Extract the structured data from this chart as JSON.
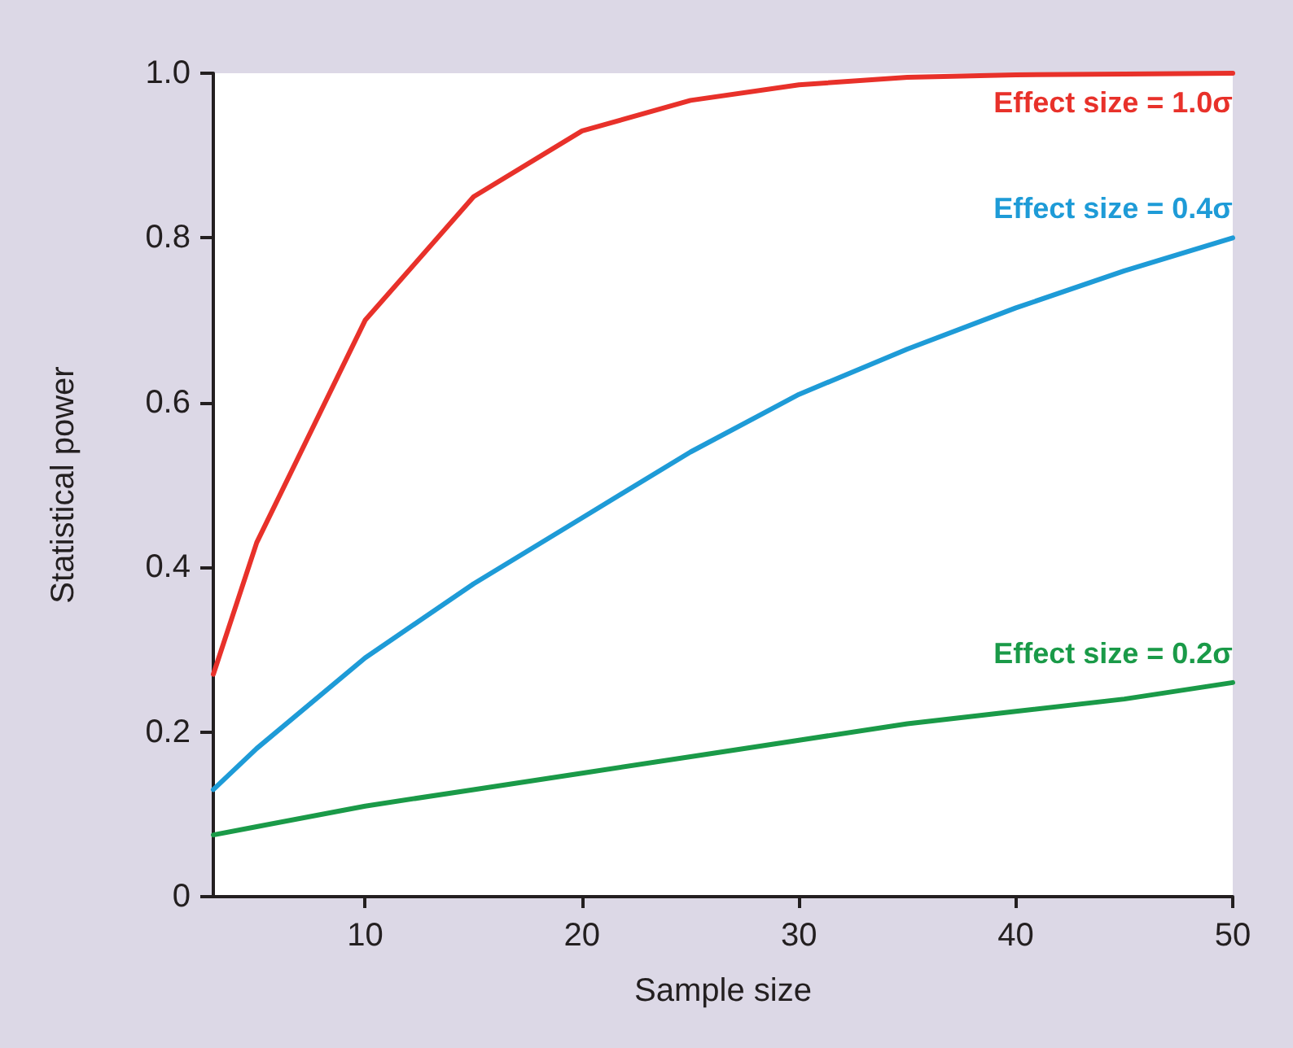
{
  "chart_data": {
    "type": "line",
    "xlabel": "Sample size",
    "ylabel": "Statistical power",
    "x": [
      3,
      5,
      10,
      15,
      20,
      25,
      30,
      35,
      40,
      45,
      50
    ],
    "series": [
      {
        "name": "Effect size = 1.0σ",
        "color": "#e8312a",
        "values": [
          0.27,
          0.43,
          0.7,
          0.85,
          0.93,
          0.967,
          0.986,
          0.995,
          0.998,
          0.999,
          1.0
        ]
      },
      {
        "name": "Effect size = 0.4σ",
        "color": "#1e9bd7",
        "values": [
          0.13,
          0.18,
          0.29,
          0.38,
          0.46,
          0.54,
          0.61,
          0.665,
          0.715,
          0.76,
          0.8
        ]
      },
      {
        "name": "Effect size = 0.2σ",
        "color": "#1a9a48",
        "values": [
          0.075,
          0.085,
          0.11,
          0.13,
          0.15,
          0.17,
          0.19,
          0.21,
          0.225,
          0.24,
          0.26
        ]
      }
    ],
    "xlim": [
      3,
      50
    ],
    "xticks": [
      10,
      20,
      30,
      40,
      50
    ],
    "ylim": [
      0,
      1
    ],
    "yticks": [
      0,
      0.2,
      0.4,
      0.6,
      0.8,
      {
        "value": 1,
        "label": "1.0"
      }
    ],
    "grid": false,
    "legend": false,
    "line_style": "solid"
  }
}
